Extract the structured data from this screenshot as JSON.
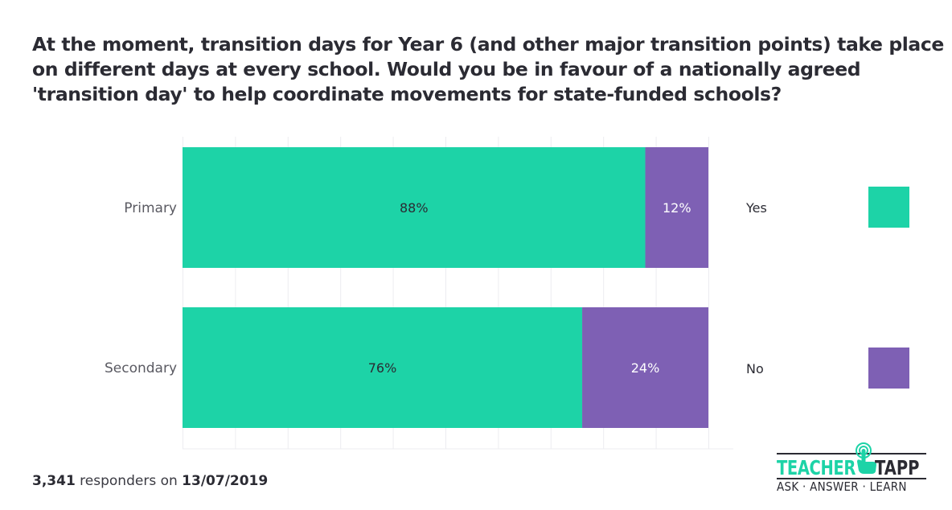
{
  "title_lines": [
    "At the moment, transition days for Year 6 (and other major transition points) take place",
    "on different days at every school. Would you be in favour of a nationally agreed",
    "'transition day' to help coordinate movements for state-funded schools?"
  ],
  "footer": {
    "count": "3,341",
    "middle": " responders on ",
    "date": "13/07/2019"
  },
  "logo": {
    "word1": "TEACHER",
    "word2": "TAPP",
    "tagline": "ASK · ANSWER · LEARN",
    "icon": "tap-hand-icon"
  },
  "colors": {
    "yes": "#1dd3a7",
    "no": "#7e60b4",
    "grid": "#ececf0",
    "label": "#5a5a62"
  },
  "chart_data": {
    "type": "bar",
    "orientation": "horizontal",
    "stacked": true,
    "title": "At the moment, transition days for Year 6 (and other major transition points) take place on different days at every school. Would you be in favour of a nationally agreed 'transition day' to help coordinate movements for state-funded schools?",
    "categories": [
      "Primary",
      "Secondary"
    ],
    "series": [
      {
        "name": "Yes",
        "values": [
          88,
          76
        ],
        "labels": [
          "88%",
          "76%"
        ]
      },
      {
        "name": "No",
        "values": [
          12,
          24
        ],
        "labels": [
          "12%",
          "24%"
        ]
      }
    ],
    "xlim": [
      0,
      100
    ],
    "grid": true,
    "legend": "right",
    "xlabel": "",
    "ylabel": ""
  }
}
